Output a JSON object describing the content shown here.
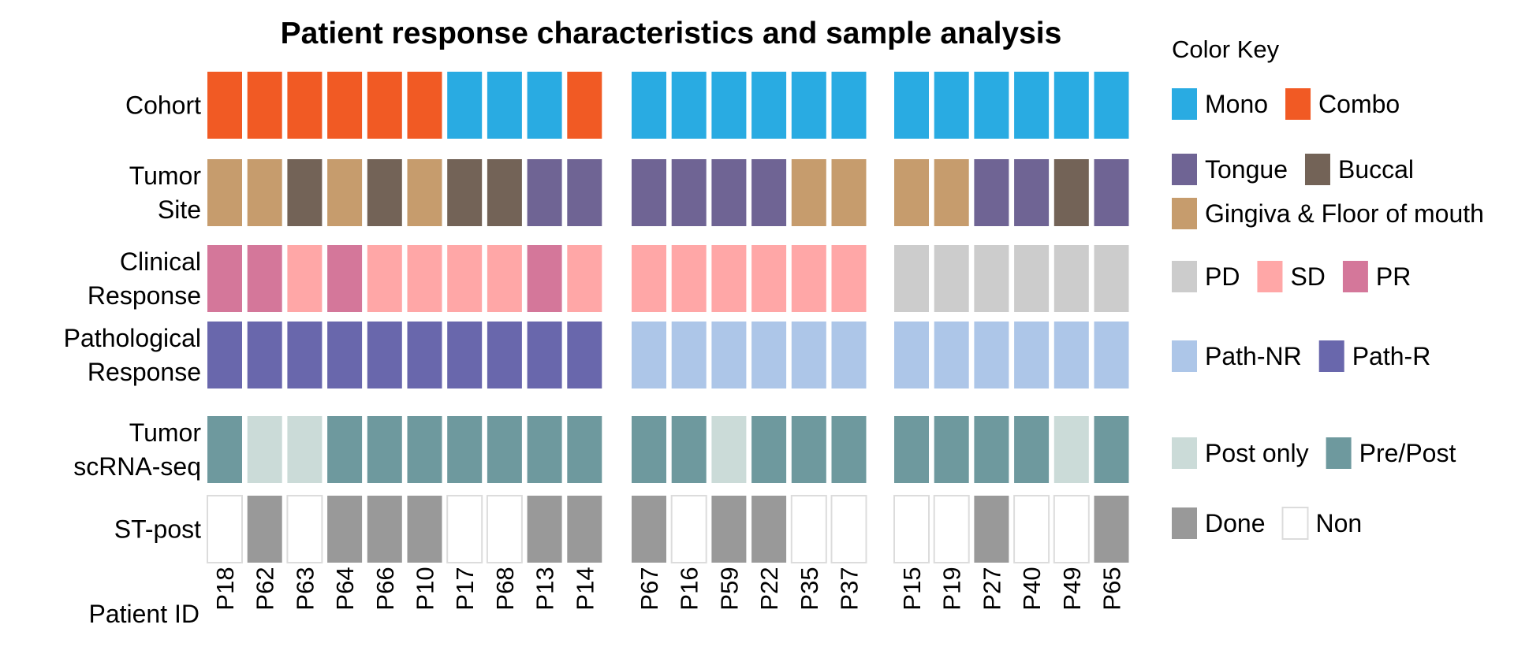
{
  "chart_data": {
    "type": "heatmap",
    "title": "Patient response characteristics and sample analysis",
    "axis_label": "Patient ID",
    "groups": [
      [
        "P18",
        "P62",
        "P63",
        "P64",
        "P66",
        "P10",
        "P17",
        "P68",
        "P13",
        "P14"
      ],
      [
        "P67",
        "P16",
        "P59",
        "P22",
        "P35",
        "P37"
      ],
      [
        "P15",
        "P19",
        "P27",
        "P40",
        "P49",
        "P65"
      ]
    ],
    "rows": [
      {
        "label": [
          "Cohort"
        ],
        "values": [
          [
            "Combo",
            "Combo",
            "Combo",
            "Combo",
            "Combo",
            "Combo",
            "Mono",
            "Mono",
            "Mono",
            "Combo"
          ],
          [
            "Mono",
            "Mono",
            "Mono",
            "Mono",
            "Mono",
            "Mono"
          ],
          [
            "Mono",
            "Mono",
            "Mono",
            "Mono",
            "Mono",
            "Mono"
          ]
        ]
      },
      {
        "label": [
          "Tumor",
          "Site"
        ],
        "values": [
          [
            "Gingiva & Floor of mouth",
            "Gingiva & Floor of mouth",
            "Buccal",
            "Gingiva & Floor of mouth",
            "Buccal",
            "Gingiva & Floor of mouth",
            "Buccal",
            "Buccal",
            "Tongue",
            "Tongue"
          ],
          [
            "Tongue",
            "Tongue",
            "Tongue",
            "Tongue",
            "Gingiva & Floor of mouth",
            "Gingiva & Floor of mouth"
          ],
          [
            "Gingiva & Floor of mouth",
            "Gingiva & Floor of mouth",
            "Tongue",
            "Tongue",
            "Buccal",
            "Tongue"
          ]
        ]
      },
      {
        "label": [
          "Clinical",
          "Response"
        ],
        "values": [
          [
            "PR",
            "PR",
            "SD",
            "PR",
            "SD",
            "SD",
            "SD",
            "SD",
            "PR",
            "SD"
          ],
          [
            "SD",
            "SD",
            "SD",
            "SD",
            "SD",
            "SD"
          ],
          [
            "PD",
            "PD",
            "PD",
            "PD",
            "PD",
            "PD"
          ]
        ]
      },
      {
        "label": [
          "Pathological",
          "Response"
        ],
        "values": [
          [
            "Path-R",
            "Path-R",
            "Path-R",
            "Path-R",
            "Path-R",
            "Path-R",
            "Path-R",
            "Path-R",
            "Path-R",
            "Path-R"
          ],
          [
            "Path-NR",
            "Path-NR",
            "Path-NR",
            "Path-NR",
            "Path-NR",
            "Path-NR"
          ],
          [
            "Path-NR",
            "Path-NR",
            "Path-NR",
            "Path-NR",
            "Path-NR",
            "Path-NR"
          ]
        ]
      },
      {
        "label": [
          "Tumor",
          "scRNA-seq"
        ],
        "values": [
          [
            "Pre/Post",
            "Post only",
            "Post only",
            "Pre/Post",
            "Pre/Post",
            "Pre/Post",
            "Pre/Post",
            "Pre/Post",
            "Pre/Post",
            "Pre/Post"
          ],
          [
            "Pre/Post",
            "Pre/Post",
            "Post only",
            "Pre/Post",
            "Pre/Post",
            "Pre/Post"
          ],
          [
            "Pre/Post",
            "Pre/Post",
            "Pre/Post",
            "Pre/Post",
            "Post only",
            "Pre/Post"
          ]
        ]
      },
      {
        "label": [
          "ST-post"
        ],
        "values": [
          [
            "Non",
            "Done",
            "Non",
            "Done",
            "Done",
            "Done",
            "Non",
            "Non",
            "Done",
            "Done"
          ],
          [
            "Done",
            "Non",
            "Done",
            "Done",
            "Non",
            "Non"
          ],
          [
            "Non",
            "Non",
            "Done",
            "Non",
            "Non",
            "Done"
          ]
        ]
      }
    ],
    "colors": {
      "Mono": "#29abe2",
      "Combo": "#f15a24",
      "Tongue": "#6f6494",
      "Buccal": "#736357",
      "Gingiva & Floor of mouth": "#c69c6d",
      "PD": "#cccccc",
      "SD": "#ffa7a7",
      "PR": "#d4779a",
      "Path-NR": "#adc6e8",
      "Path-R": "#6967ac",
      "Post only": "#cbdbd8",
      "Pre/Post": "#6e999e",
      "Done": "#999999",
      "Non": "#ffffff"
    },
    "legend": {
      "title": "Color Key",
      "position": "right",
      "rows": [
        [
          "Mono",
          "Combo"
        ],
        [
          "Tongue",
          "Buccal"
        ],
        [
          "Gingiva & Floor of mouth"
        ],
        [
          "PD",
          "SD",
          "PR"
        ],
        [
          "Path-NR",
          "Path-R"
        ],
        [
          "Post only",
          "Pre/Post"
        ],
        [
          "Done",
          "Non"
        ]
      ]
    }
  }
}
